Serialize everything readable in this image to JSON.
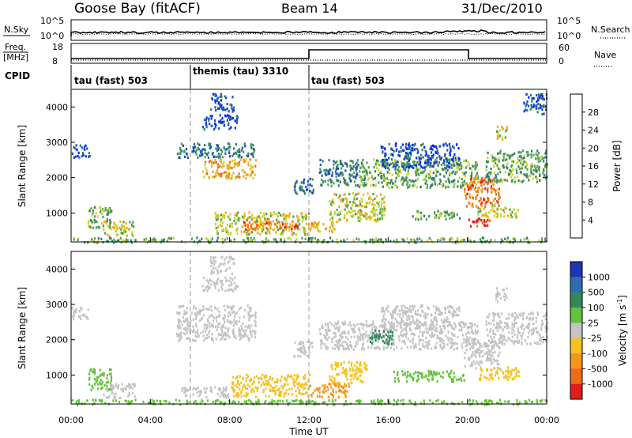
{
  "header": {
    "station": "Goose Bay (fitACF)",
    "beam": "Beam 14",
    "date": "31/Dec/2010"
  },
  "noise_panel": {
    "left_label": "N.Sky",
    "right_label": "N.Search",
    "left_ticks": [
      "10^5",
      "10^0"
    ],
    "right_ticks": [
      "10^5",
      "10^0"
    ]
  },
  "freq_panel": {
    "left_label_1": "Freq.",
    "left_label_2": "[MHz]",
    "right_label": "Nave",
    "left_ticks": [
      "18",
      "8"
    ],
    "right_ticks": [
      "60",
      "0"
    ]
  },
  "cpid": {
    "label": "CPID",
    "segments": [
      {
        "text": "tau (fast) 503",
        "start_hour": 0
      },
      {
        "text": "themis (tau) 3310",
        "start_hour": 6
      },
      {
        "text": "tau (fast) 503",
        "start_hour": 12
      }
    ]
  },
  "power_colorbar": {
    "title": "Power [dB]",
    "ticks": [
      "4",
      "8",
      "12",
      "16",
      "20",
      "24",
      "28"
    ],
    "colors": [
      "#0028ff",
      "#1d4fb8",
      "#2f7d6e",
      "#4fa04f",
      "#c9d42d",
      "#f3a51a",
      "#f26a16",
      "#e01d18"
    ]
  },
  "velocity_colorbar": {
    "title": "Velocity [m s^-1]",
    "title_main": "Velocity [m s",
    "title_exp": "-1",
    "title_end": "]",
    "ticks": [
      "1000",
      "500",
      "100",
      "25",
      "-25",
      "-100",
      "-500",
      "-1000"
    ],
    "colors": [
      "#1f35b8",
      "#2e6bb3",
      "#2f8a5a",
      "#63c23a",
      "#c4c4c4",
      "#f6c21d",
      "#f59619",
      "#ef6b16",
      "#e01d18"
    ]
  },
  "chart_data": {
    "type": "heatmap",
    "xlabel": "Time UT",
    "x_ticks": [
      "00:00",
      "04:00",
      "08:00",
      "12:00",
      "16:00",
      "20:00",
      "00:00"
    ],
    "xlim_hours": [
      0,
      24
    ],
    "ylabel": "Slant Range [km]",
    "y_ticks": [
      "1000",
      "2000",
      "3000",
      "4000"
    ],
    "ylim_km": [
      180,
      4500
    ],
    "grid": false,
    "power_regions": [
      {
        "t0": 0.0,
        "t1": 24.0,
        "r0": 190,
        "r1": 330,
        "level": 3
      },
      {
        "t0": 0.0,
        "t1": 0.9,
        "r0": 2600,
        "r1": 2950,
        "level": 1
      },
      {
        "t0": 0.8,
        "t1": 2.0,
        "r0": 600,
        "r1": 1200,
        "level": 3
      },
      {
        "t0": 1.6,
        "t1": 3.2,
        "r0": 380,
        "r1": 800,
        "level": 4
      },
      {
        "t0": 5.3,
        "t1": 9.3,
        "r0": 2600,
        "r1": 3000,
        "level": 2
      },
      {
        "t0": 6.6,
        "t1": 9.3,
        "r0": 2000,
        "r1": 2550,
        "level": 5
      },
      {
        "t0": 6.6,
        "t1": 8.4,
        "r0": 3400,
        "r1": 3800,
        "level": 1
      },
      {
        "t0": 7.0,
        "t1": 8.2,
        "r0": 3900,
        "r1": 4400,
        "level": 1
      },
      {
        "t0": 7.2,
        "t1": 12.0,
        "r0": 420,
        "r1": 1050,
        "level": 4
      },
      {
        "t0": 8.6,
        "t1": 11.6,
        "r0": 550,
        "r1": 800,
        "level": 6
      },
      {
        "t0": 11.2,
        "t1": 12.2,
        "r0": 1550,
        "r1": 2000,
        "level": 2
      },
      {
        "t0": 12.0,
        "t1": 13.4,
        "r0": 480,
        "r1": 800,
        "level": 5
      },
      {
        "t0": 12.5,
        "t1": 14.5,
        "r0": 1800,
        "r1": 2550,
        "level": 2
      },
      {
        "t0": 13.0,
        "t1": 15.8,
        "r0": 800,
        "r1": 1600,
        "level": 4
      },
      {
        "t0": 14.5,
        "t1": 20.5,
        "r0": 1750,
        "r1": 2550,
        "level": 3
      },
      {
        "t0": 15.6,
        "t1": 19.6,
        "r0": 2300,
        "r1": 3000,
        "level": 1
      },
      {
        "t0": 17.2,
        "t1": 19.6,
        "r0": 850,
        "r1": 1100,
        "level": 3
      },
      {
        "t0": 19.8,
        "t1": 21.6,
        "r0": 1200,
        "r1": 2050,
        "level": 6
      },
      {
        "t0": 20.5,
        "t1": 22.6,
        "r0": 900,
        "r1": 1250,
        "level": 4
      },
      {
        "t0": 20.9,
        "t1": 24.0,
        "r0": 1900,
        "r1": 2800,
        "level": 3
      },
      {
        "t0": 21.4,
        "t1": 22.0,
        "r0": 3100,
        "r1": 3500,
        "level": 4
      },
      {
        "t0": 20.0,
        "t1": 21.2,
        "r0": 650,
        "r1": 880,
        "level": 7
      },
      {
        "t0": 22.8,
        "t1": 24.0,
        "r0": 3800,
        "r1": 4400,
        "level": 1
      }
    ],
    "velocity_regions": [
      {
        "t0": 0.0,
        "t1": 24.0,
        "r0": 190,
        "r1": 330,
        "vel": 3
      },
      {
        "t0": 0.0,
        "t1": 0.9,
        "r0": 2600,
        "r1": 2950,
        "vel": 4
      },
      {
        "t0": 0.8,
        "t1": 2.0,
        "r0": 600,
        "r1": 1200,
        "vel": 3
      },
      {
        "t0": 1.6,
        "t1": 3.2,
        "r0": 380,
        "r1": 800,
        "vel": 4
      },
      {
        "t0": 5.3,
        "t1": 9.3,
        "r0": 2000,
        "r1": 3000,
        "vel": 4
      },
      {
        "t0": 6.6,
        "t1": 8.4,
        "r0": 3400,
        "r1": 3800,
        "vel": 4
      },
      {
        "t0": 7.0,
        "t1": 8.2,
        "r0": 3900,
        "r1": 4400,
        "vel": 4
      },
      {
        "t0": 5.5,
        "t1": 8.0,
        "r0": 400,
        "r1": 700,
        "vel": 4
      },
      {
        "t0": 8.0,
        "t1": 12.0,
        "r0": 420,
        "r1": 1050,
        "vel": 5
      },
      {
        "t0": 11.2,
        "t1": 12.2,
        "r0": 1550,
        "r1": 2000,
        "vel": 4
      },
      {
        "t0": 12.0,
        "t1": 14.0,
        "r0": 400,
        "r1": 800,
        "vel": 6
      },
      {
        "t0": 13.0,
        "t1": 15.0,
        "r0": 800,
        "r1": 1400,
        "vel": 5
      },
      {
        "t0": 12.5,
        "t1": 20.5,
        "r0": 1750,
        "r1": 2550,
        "vel": 4
      },
      {
        "t0": 15.6,
        "t1": 19.6,
        "r0": 2300,
        "r1": 3000,
        "vel": 4
      },
      {
        "t0": 15.0,
        "t1": 16.2,
        "r0": 1900,
        "r1": 2300,
        "vel": 2
      },
      {
        "t0": 16.2,
        "t1": 19.8,
        "r0": 850,
        "r1": 1150,
        "vel": 3
      },
      {
        "t0": 19.8,
        "t1": 21.6,
        "r0": 1200,
        "r1": 2050,
        "vel": 4
      },
      {
        "t0": 20.5,
        "t1": 22.6,
        "r0": 900,
        "r1": 1250,
        "vel": 5
      },
      {
        "t0": 20.9,
        "t1": 24.0,
        "r0": 1900,
        "r1": 2800,
        "vel": 4
      },
      {
        "t0": 21.4,
        "t1": 22.0,
        "r0": 3100,
        "r1": 3500,
        "vel": 4
      }
    ]
  }
}
